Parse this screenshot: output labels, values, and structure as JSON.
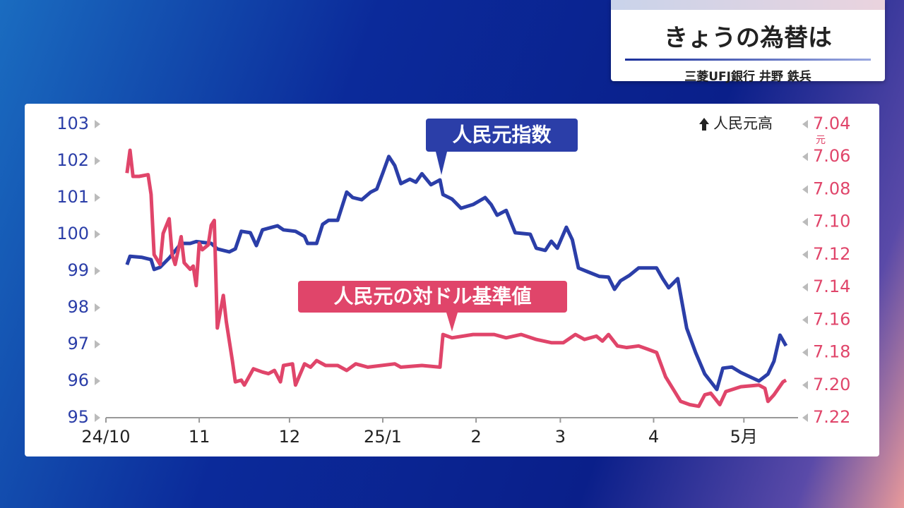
{
  "header": {
    "title": "きょうの為替は",
    "subtitle": "三菱UFJ銀行 井野 鉄兵"
  },
  "chart_data": {
    "type": "line",
    "annotation": "人民元高",
    "y2_unit": "元",
    "xlim": [
      0,
      230
    ],
    "xticks": [
      {
        "value": 0,
        "label": "24/10"
      },
      {
        "value": 31,
        "label": "11"
      },
      {
        "value": 61,
        "label": "12"
      },
      {
        "value": 92,
        "label": "25/1"
      },
      {
        "value": 123,
        "label": "2"
      },
      {
        "value": 151,
        "label": "3"
      },
      {
        "value": 182,
        "label": "4"
      },
      {
        "value": 212,
        "label": "5月"
      }
    ],
    "ylim": [
      95,
      103
    ],
    "yticks": [
      95,
      96,
      97,
      98,
      99,
      100,
      101,
      102,
      103
    ],
    "y2lim": [
      7.22,
      7.04
    ],
    "y2ticks": [
      {
        "value": 7.22,
        "label": "7.22"
      },
      {
        "value": 7.2,
        "label": "7.20"
      },
      {
        "value": 7.18,
        "label": "7.18"
      },
      {
        "value": 7.16,
        "label": "7.16"
      },
      {
        "value": 7.14,
        "label": "7.14"
      },
      {
        "value": 7.12,
        "label": "7.12"
      },
      {
        "value": 7.1,
        "label": "7.10"
      },
      {
        "value": 7.08,
        "label": "7.08"
      },
      {
        "value": 7.06,
        "label": "7.06"
      },
      {
        "value": 7.04,
        "label": "7.04"
      }
    ],
    "series": [
      {
        "name": "人民元指数",
        "color": "#2b3ea8",
        "x": [
          7,
          8,
          12,
          15,
          16,
          18,
          21,
          25,
          28,
          30,
          35,
          37,
          41,
          43,
          45,
          48,
          50,
          52,
          57,
          59,
          63,
          66,
          67,
          70,
          72,
          74,
          77,
          80,
          82,
          85,
          88,
          90,
          92,
          94,
          96,
          98,
          101,
          103,
          105,
          108,
          111,
          112,
          115,
          118,
          122,
          126,
          128,
          130,
          133,
          136,
          141,
          143,
          146,
          148,
          150,
          153,
          155,
          157,
          160,
          164,
          167,
          169,
          171,
          174,
          177,
          183,
          185,
          187,
          190,
          193,
          196,
          199,
          203,
          205,
          208,
          211,
          217,
          220,
          222,
          224,
          226
        ],
        "values": [
          99.17,
          99.4,
          99.37,
          99.31,
          99.04,
          99.1,
          99.35,
          99.75,
          99.75,
          99.8,
          99.75,
          99.6,
          99.52,
          99.6,
          100.08,
          100.04,
          99.69,
          100.12,
          100.23,
          100.12,
          100.08,
          99.94,
          99.75,
          99.75,
          100.27,
          100.38,
          100.38,
          101.15,
          101.0,
          100.94,
          101.15,
          101.23,
          101.67,
          102.12,
          101.87,
          101.38,
          101.5,
          101.42,
          101.65,
          101.35,
          101.48,
          101.08,
          100.96,
          100.71,
          100.81,
          101.0,
          100.81,
          100.52,
          100.65,
          100.04,
          100.0,
          99.62,
          99.56,
          99.81,
          99.62,
          100.19,
          99.85,
          99.08,
          98.98,
          98.85,
          98.83,
          98.5,
          98.73,
          98.88,
          99.08,
          99.08,
          98.79,
          98.54,
          98.79,
          97.44,
          96.77,
          96.19,
          95.77,
          96.35,
          96.38,
          96.23,
          96.0,
          96.19,
          96.54,
          97.25,
          96.96
        ]
      },
      {
        "name": "人民元の対ドル基準値",
        "color": "#e0456a",
        "axis": "y2",
        "x": [
          7,
          8,
          9,
          11,
          14,
          15,
          16,
          18,
          19,
          21,
          22,
          23,
          25,
          26,
          28,
          29,
          30,
          31,
          32,
          34,
          35,
          36,
          37,
          39,
          40,
          42,
          43,
          45,
          46,
          49,
          52,
          54,
          56,
          58,
          59,
          62,
          63,
          66,
          68,
          70,
          73,
          77,
          80,
          83,
          87,
          96,
          98,
          105,
          111,
          112,
          115,
          122,
          129,
          133,
          138,
          143,
          148,
          152,
          156,
          159,
          163,
          165,
          167,
          170,
          173,
          177,
          180,
          183,
          186,
          189,
          191,
          194,
          197,
          199,
          201,
          204,
          206,
          211,
          217,
          219,
          220,
          222,
          225,
          226
        ],
        "values": [
          7.07,
          7.056,
          7.072,
          7.072,
          7.071,
          7.083,
          7.12,
          7.126,
          7.107,
          7.098,
          7.12,
          7.126,
          7.109,
          7.125,
          7.129,
          7.127,
          7.139,
          7.113,
          7.117,
          7.114,
          7.102,
          7.099,
          7.165,
          7.145,
          7.161,
          7.185,
          7.198,
          7.197,
          7.2,
          7.19,
          7.192,
          7.193,
          7.191,
          7.198,
          7.188,
          7.187,
          7.2,
          7.187,
          7.189,
          7.185,
          7.188,
          7.188,
          7.191,
          7.187,
          7.189,
          7.187,
          7.189,
          7.188,
          7.189,
          7.169,
          7.171,
          7.169,
          7.169,
          7.171,
          7.169,
          7.172,
          7.174,
          7.174,
          7.169,
          7.172,
          7.17,
          7.173,
          7.169,
          7.176,
          7.177,
          7.176,
          7.178,
          7.18,
          7.195,
          7.204,
          7.21,
          7.212,
          7.213,
          7.206,
          7.205,
          7.212,
          7.204,
          7.201,
          7.2,
          7.202,
          7.21,
          7.206,
          7.198,
          7.197
        ]
      }
    ]
  }
}
